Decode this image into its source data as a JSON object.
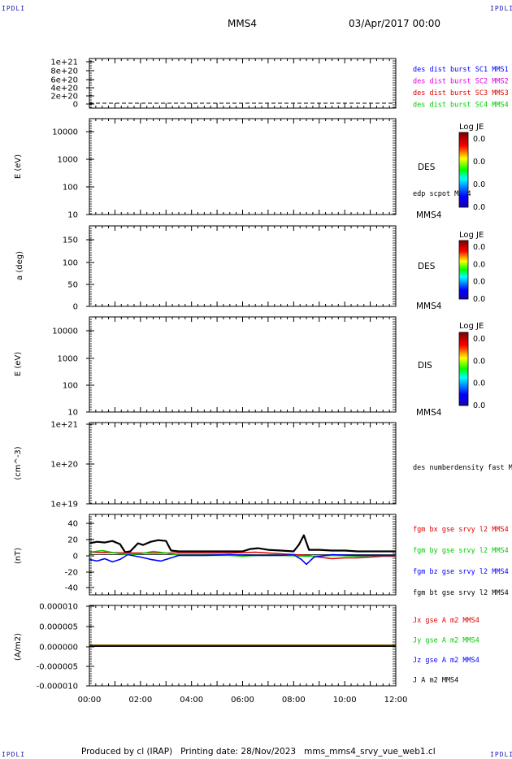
{
  "header": {
    "logo_left": "IPDLI",
    "logo_right": "IPDLI",
    "spacecraft": "MMS4",
    "datetime": "03/Apr/2017 00:00"
  },
  "footer": {
    "produced_by": "Produced by cl (IRAP)",
    "printing_date": "Printing date: 28/Nov/2023",
    "script": "mms_mms4_srvy_vue_web1.cl",
    "logo_left": "IPDLI",
    "logo_right": "IPDLI"
  },
  "colors": {
    "black": "#000000",
    "blue": "#0000ff",
    "green": "#00cc00",
    "red": "#dd0000",
    "magenta": "#dd00dd"
  },
  "chart_data": [
    {
      "type": "line",
      "panel": "distribution-burst",
      "y_ticks": [
        "1e+21",
        "8e+20",
        "6e+20",
        "4e+20",
        "2e+20",
        "0"
      ],
      "ylim": [
        0,
        1e+21
      ],
      "legend": [
        {
          "name": "des dist burst SC1 MMS1",
          "color": "#0000ff"
        },
        {
          "name": "des dist burst SC2 MMS2",
          "color": "#dd00dd"
        },
        {
          "name": "des dist burst SC3 MMS3",
          "color": "#dd0000"
        },
        {
          "name": "des dist burst SC4 MMS4",
          "color": "#00cc00"
        }
      ],
      "series": [
        {
          "name": "",
          "x": [
            0,
            12
          ],
          "y": [
            0,
            0
          ],
          "style": "dashed"
        }
      ]
    },
    {
      "type": "heatmap",
      "panel": "des-energy",
      "ylabel": "E (eV)",
      "y_ticks": [
        "10000",
        "1000",
        "100",
        "10"
      ],
      "scale": "log",
      "ylim": [
        10,
        20000
      ],
      "side_label": "DES",
      "trace_label": "edp scpot MMS4",
      "corner_label": "MMS4",
      "colorbar": {
        "title": "Log JE",
        "ticks": [
          "0.0",
          "0.0",
          "0.0",
          "0.0"
        ]
      }
    },
    {
      "type": "heatmap",
      "panel": "des-pitch",
      "ylabel": "a (deg)",
      "y_ticks": [
        "150",
        "100",
        "50",
        "0"
      ],
      "ylim": [
        0,
        180
      ],
      "side_label": "DES",
      "corner_label": "MMS4",
      "colorbar": {
        "title": "Log JE",
        "ticks": [
          "0.0",
          "0.0",
          "0.0",
          "0.0"
        ]
      }
    },
    {
      "type": "heatmap",
      "panel": "dis-energy",
      "ylabel": "E (eV)",
      "y_ticks": [
        "10000",
        "1000",
        "100",
        "10"
      ],
      "scale": "log",
      "ylim": [
        10,
        20000
      ],
      "side_label": "DIS",
      "corner_label": "MMS4",
      "colorbar": {
        "title": "Log JE",
        "ticks": [
          "0.0",
          "0.0",
          "0.0",
          "0.0"
        ]
      }
    },
    {
      "type": "line",
      "panel": "density",
      "ylabel": "(cm^-3)",
      "y_ticks": [
        "1e+21",
        "1e+20",
        "1e+19"
      ],
      "scale": "log",
      "ylim": [
        1e+19,
        1e+21
      ],
      "legend": [
        {
          "name": "des numberdensity fast M",
          "color": "#000000"
        }
      ]
    },
    {
      "type": "line",
      "panel": "magnetic-field",
      "ylabel": "(nT)",
      "y_ticks": [
        "40",
        "20",
        "0",
        "-20",
        "-40"
      ],
      "ylim": [
        -50,
        50
      ],
      "legend": [
        {
          "name": "fgm bx gse srvy l2 MMS4",
          "color": "#dd0000"
        },
        {
          "name": "fgm by gse srvy l2 MMS4",
          "color": "#00cc00"
        },
        {
          "name": "fgm bz gse srvy l2 MMS4",
          "color": "#0000ff"
        },
        {
          "name": "fgm bt gse srvy l2 MMS4",
          "color": "#000000"
        }
      ],
      "series": [
        {
          "name": "fgm bt gse srvy l2 MMS4",
          "color": "#000000",
          "x": [
            0,
            0.3,
            0.6,
            0.9,
            1.2,
            1.4,
            1.6,
            1.9,
            2.1,
            2.4,
            2.7,
            3.0,
            3.2,
            3.5,
            4.0,
            4.5,
            5.0,
            5.5,
            6.0,
            6.3,
            6.6,
            7.0,
            7.5,
            8.0,
            8.2,
            8.4,
            8.6,
            9.0,
            9.5,
            10.0,
            10.5,
            11.0,
            11.5,
            12.0
          ],
          "y": [
            14,
            16,
            15,
            17,
            13,
            3,
            4,
            14,
            12,
            16,
            18,
            17,
            5,
            4,
            4,
            4,
            4,
            4,
            4,
            7,
            8,
            6,
            5,
            4,
            12,
            24,
            6,
            6,
            5,
            5,
            4,
            4,
            4,
            4
          ]
        },
        {
          "name": "fgm bx gse srvy l2 MMS4",
          "color": "#dd0000",
          "x": [
            0,
            1.5,
            3.3,
            5.5,
            6.5,
            7.5,
            8.6,
            9.0,
            9.5,
            10.0,
            10.5,
            11.0,
            11.5,
            12.0
          ],
          "y": [
            3,
            2,
            2,
            2,
            3,
            1,
            -1,
            -3,
            -5,
            -4,
            -4,
            -3,
            -2,
            -2
          ]
        },
        {
          "name": "fgm by gse srvy l2 MMS4",
          "color": "#00cc00",
          "x": [
            0,
            0.5,
            1.0,
            1.5,
            2.0,
            2.5,
            3.0,
            3.5,
            4.5,
            5.5,
            6.0,
            6.5,
            7.5,
            8.5,
            9.5,
            10.5,
            11.5,
            12.0
          ],
          "y": [
            3,
            5,
            2,
            0,
            1,
            4,
            2,
            -1,
            -1,
            -1,
            -2,
            -1,
            -1,
            -2,
            -1,
            -2,
            -1,
            -1
          ]
        },
        {
          "name": "fgm bz gse srvy l2 MMS4",
          "color": "#0000ff",
          "x": [
            0,
            0.3,
            0.6,
            0.9,
            1.2,
            1.5,
            2.0,
            2.4,
            2.8,
            3.1,
            3.5,
            4.5,
            5.5,
            6.5,
            7.5,
            8.0,
            8.3,
            8.5,
            8.8,
            9.5,
            10.5,
            11.5,
            12.0
          ],
          "y": [
            -6,
            -8,
            -5,
            -9,
            -6,
            0,
            -3,
            -6,
            -8,
            -5,
            -1,
            -1,
            0,
            -1,
            -1,
            0,
            -6,
            -12,
            -3,
            0,
            -1,
            -1,
            -1
          ]
        }
      ]
    },
    {
      "type": "line",
      "panel": "current-density",
      "ylabel": "(A/m2)",
      "y_ticks": [
        "0.000010",
        "0.000005",
        "0.000000",
        "-0.000005",
        "-0.000010"
      ],
      "ylim": [
        -1e-05,
        1e-05
      ],
      "legend": [
        {
          "name": "Jx gse A m2 MMS4",
          "color": "#dd0000"
        },
        {
          "name": "Jy gse A m2 MMS4",
          "color": "#00cc00"
        },
        {
          "name": "Jz gse A m2 MMS4",
          "color": "#0000ff"
        },
        {
          "name": "J A m2 MMS4",
          "color": "#000000"
        }
      ],
      "series": [
        {
          "name": "Jx gse A m2 MMS4",
          "color": "#dd0000",
          "x": [
            0,
            12
          ],
          "y": [
            0,
            0
          ]
        },
        {
          "name": "Jy gse A m2 MMS4",
          "color": "#00cc00",
          "x": [
            0,
            12
          ],
          "y": [
            0,
            0
          ]
        },
        {
          "name": "Jz gse A m2 MMS4",
          "color": "#0000ff",
          "x": [
            0,
            12
          ],
          "y": [
            0,
            0
          ]
        },
        {
          "name": "J A m2 MMS4",
          "color": "#000000",
          "x": [
            0,
            12
          ],
          "y": [
            0,
            0
          ]
        }
      ]
    }
  ],
  "x_axis": {
    "range_hours": [
      0,
      12
    ],
    "tick_labels": [
      "00:00",
      "02:00",
      "04:00",
      "06:00",
      "08:00",
      "10:00",
      "12:00"
    ]
  }
}
